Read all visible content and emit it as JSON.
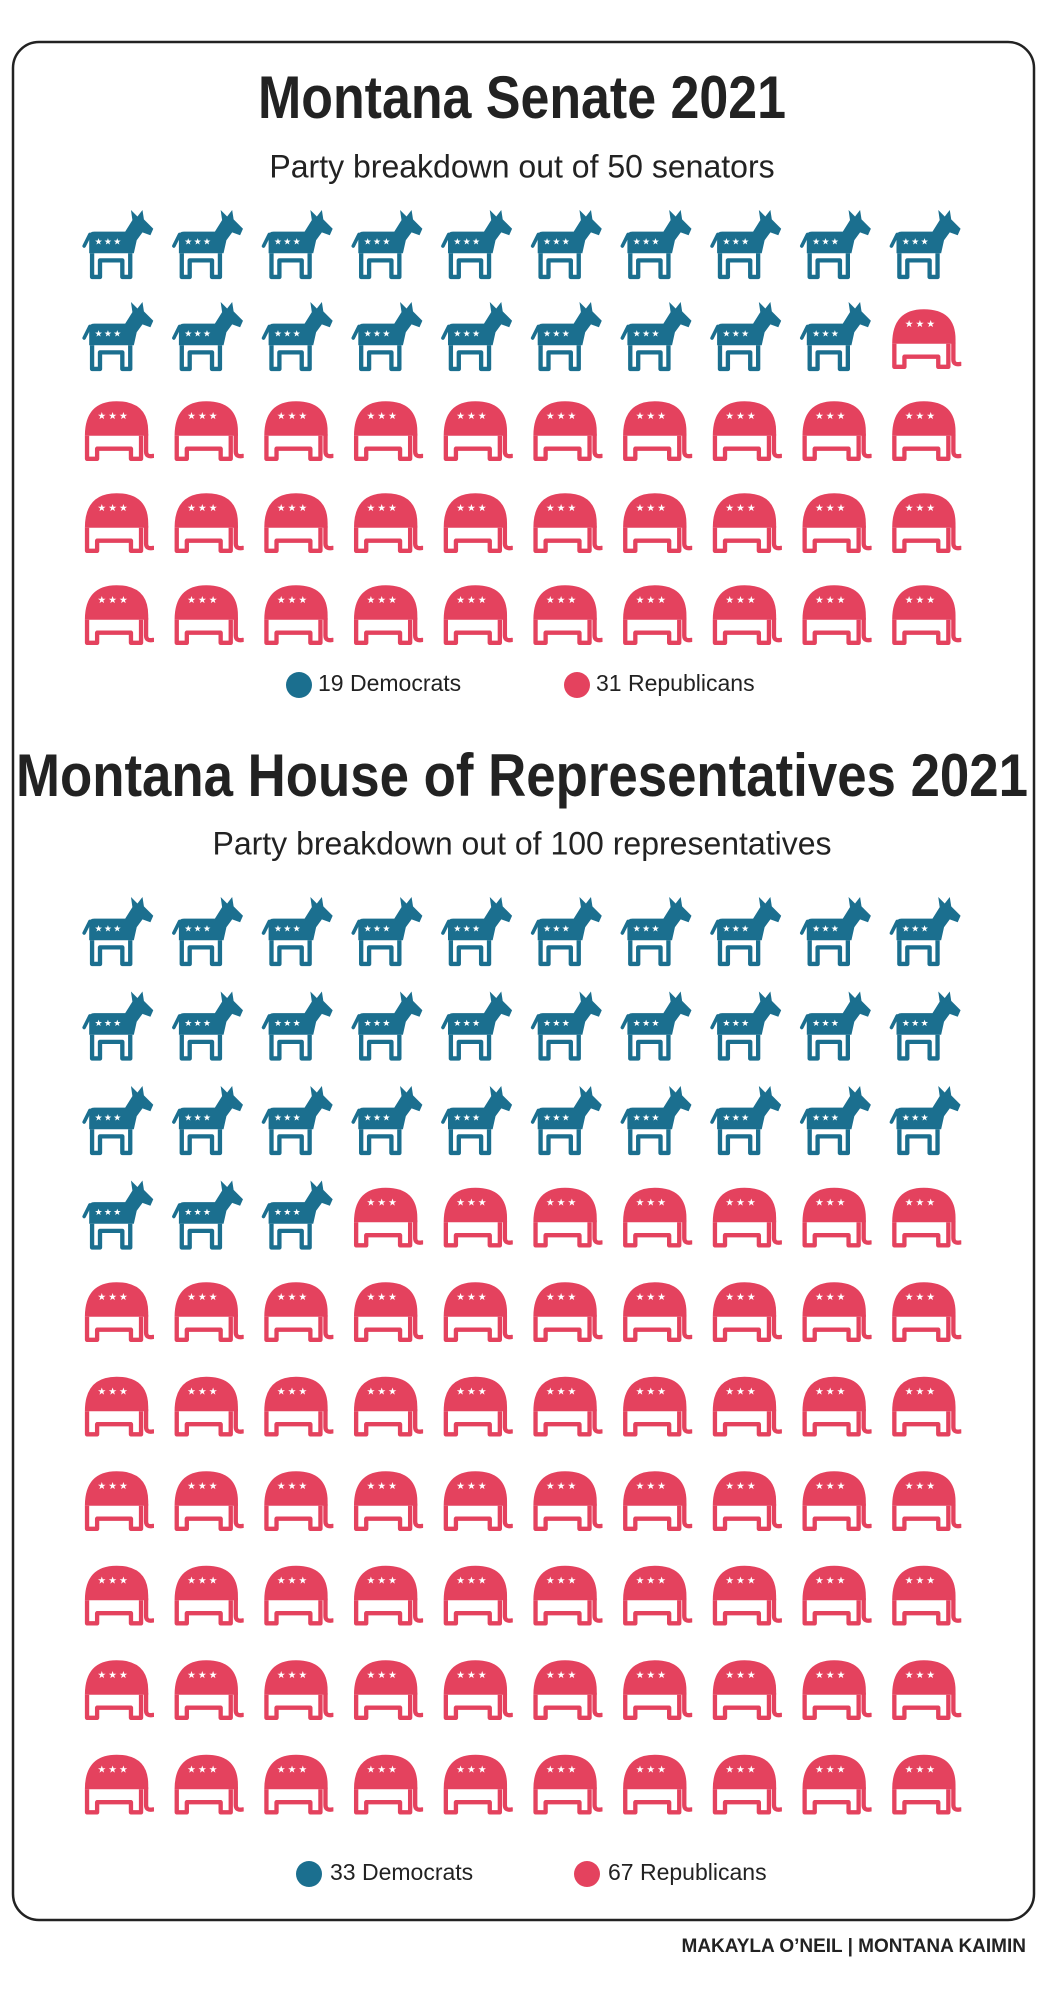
{
  "chart_data": [
    {
      "type": "pictograph",
      "title": "Montana Senate 2021",
      "subtitle": "Party breakdown out of 50 senators",
      "categories": [
        "Democrats",
        "Republicans"
      ],
      "values": [
        19,
        31
      ],
      "colors": [
        "#1b6f8f",
        "#e4425e"
      ]
    },
    {
      "type": "pictograph",
      "title": "Montana House of Representatives 2021",
      "subtitle": "Party breakdown out of 100 representatives",
      "categories": [
        "Democrats",
        "Republicans"
      ],
      "values": [
        33,
        67
      ],
      "colors": [
        "#1b6f8f",
        "#e4425e"
      ]
    }
  ],
  "credit": "MAKAYLA O’NEIL | MONTANA KAIMIN"
}
